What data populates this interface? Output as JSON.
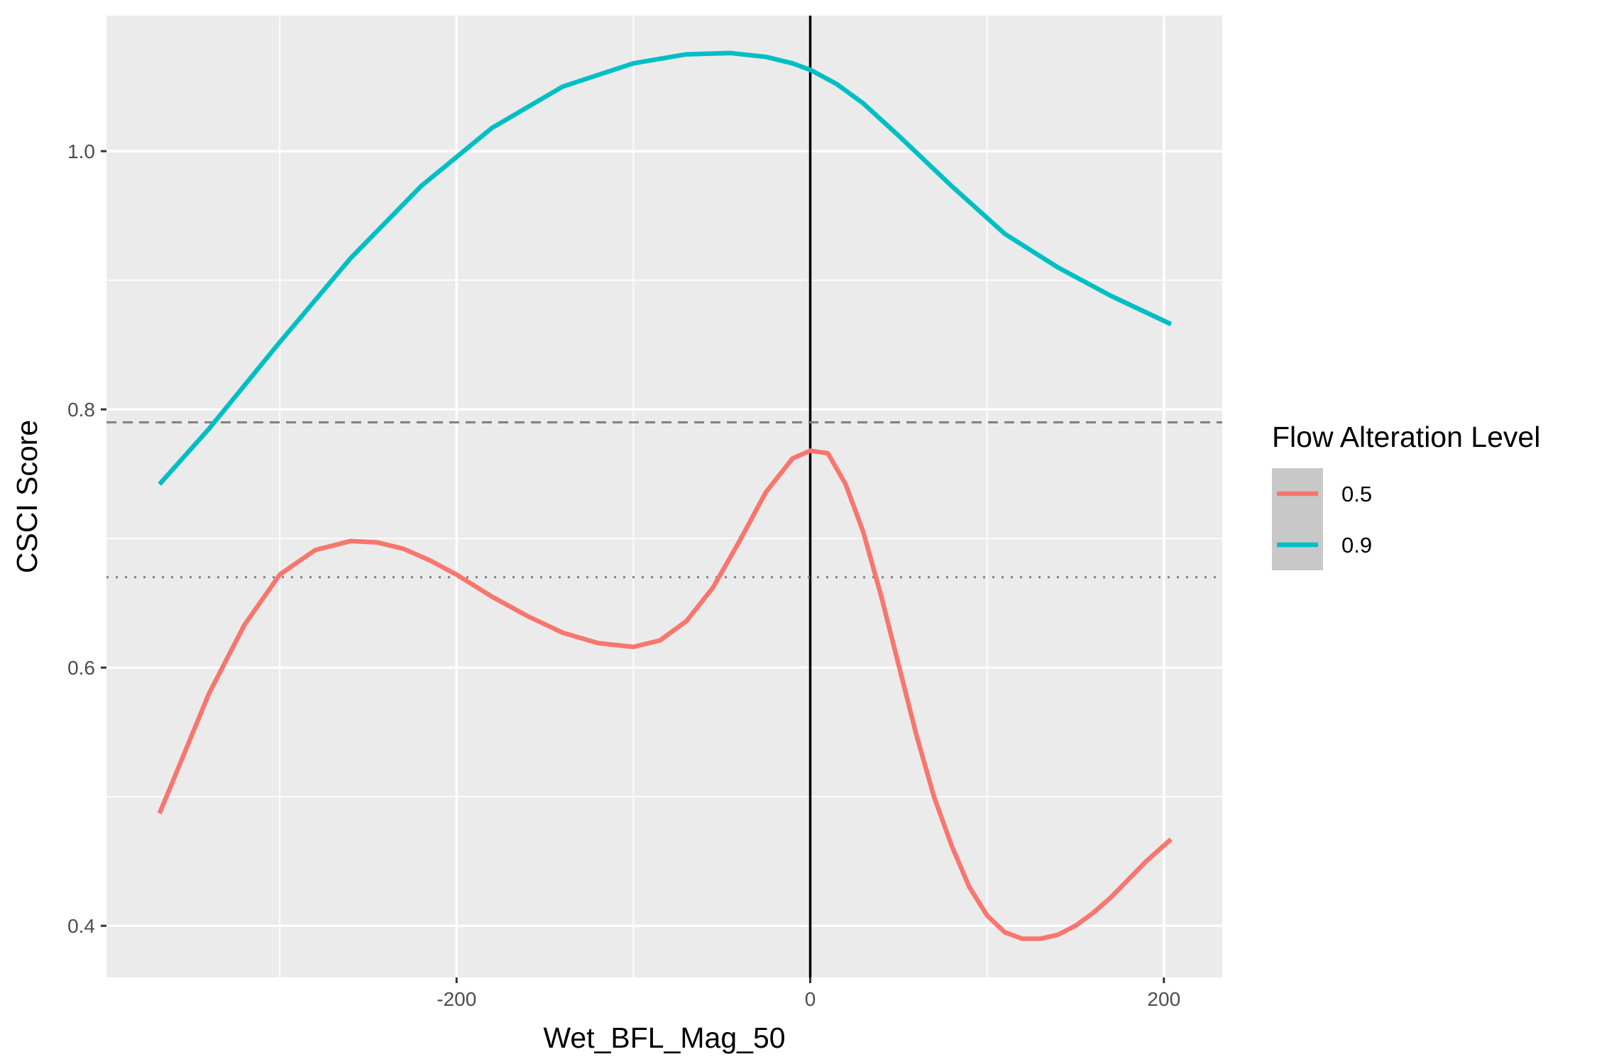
{
  "chart_data": {
    "type": "line",
    "xlabel": "Wet_BFL_Mag_50",
    "ylabel": "CSCI Score",
    "xlim": [
      -398,
      233
    ],
    "ylim": [
      0.36,
      1.105
    ],
    "x_ticks": [
      -200,
      0,
      200
    ],
    "x_tick_labels": [
      "-200",
      "0",
      "200"
    ],
    "x_minor_ticks": [
      -300,
      -100,
      100
    ],
    "y_ticks": [
      0.4,
      0.6,
      0.8,
      1.0
    ],
    "y_tick_labels": [
      "0.4",
      "0.6",
      "0.8",
      "1.0"
    ],
    "y_minor_ticks": [
      0.5,
      0.7,
      0.9
    ],
    "grid": true,
    "legend": {
      "title": "Flow Alteration Level",
      "position": "right"
    },
    "reference_lines": [
      {
        "orientation": "vertical",
        "x": 0,
        "style": "solid",
        "color": "#000000"
      },
      {
        "orientation": "horizontal",
        "y": 0.79,
        "style": "dashed",
        "color": "#7f7f7f"
      },
      {
        "orientation": "horizontal",
        "y": 0.67,
        "style": "dotted",
        "color": "#7f7f7f"
      }
    ],
    "series": [
      {
        "name": "0.5",
        "color": "#F8766D",
        "x": [
          -368,
          -340,
          -320,
          -300,
          -280,
          -260,
          -245,
          -230,
          -215,
          -200,
          -180,
          -160,
          -140,
          -120,
          -100,
          -85,
          -70,
          -55,
          -40,
          -25,
          -10,
          0,
          10,
          20,
          30,
          40,
          50,
          60,
          70,
          80,
          90,
          100,
          110,
          120,
          130,
          140,
          150,
          160,
          170,
          180,
          190,
          204
        ],
        "y": [
          0.487,
          0.58,
          0.633,
          0.672,
          0.691,
          0.698,
          0.697,
          0.692,
          0.683,
          0.672,
          0.655,
          0.64,
          0.627,
          0.619,
          0.616,
          0.621,
          0.636,
          0.662,
          0.698,
          0.736,
          0.762,
          0.768,
          0.766,
          0.742,
          0.705,
          0.656,
          0.602,
          0.548,
          0.5,
          0.462,
          0.43,
          0.408,
          0.395,
          0.39,
          0.39,
          0.393,
          0.4,
          0.41,
          0.422,
          0.436,
          0.45,
          0.467
        ]
      },
      {
        "name": "0.9",
        "color": "#00BFC4",
        "x": [
          -368,
          -340,
          -300,
          -260,
          -220,
          -180,
          -140,
          -100,
          -70,
          -45,
          -25,
          -10,
          0,
          15,
          30,
          50,
          80,
          110,
          140,
          170,
          204
        ],
        "y": [
          0.742,
          0.785,
          0.852,
          0.917,
          0.973,
          1.018,
          1.05,
          1.068,
          1.075,
          1.076,
          1.073,
          1.068,
          1.063,
          1.052,
          1.037,
          1.012,
          0.973,
          0.936,
          0.91,
          0.888,
          0.866
        ]
      }
    ]
  }
}
